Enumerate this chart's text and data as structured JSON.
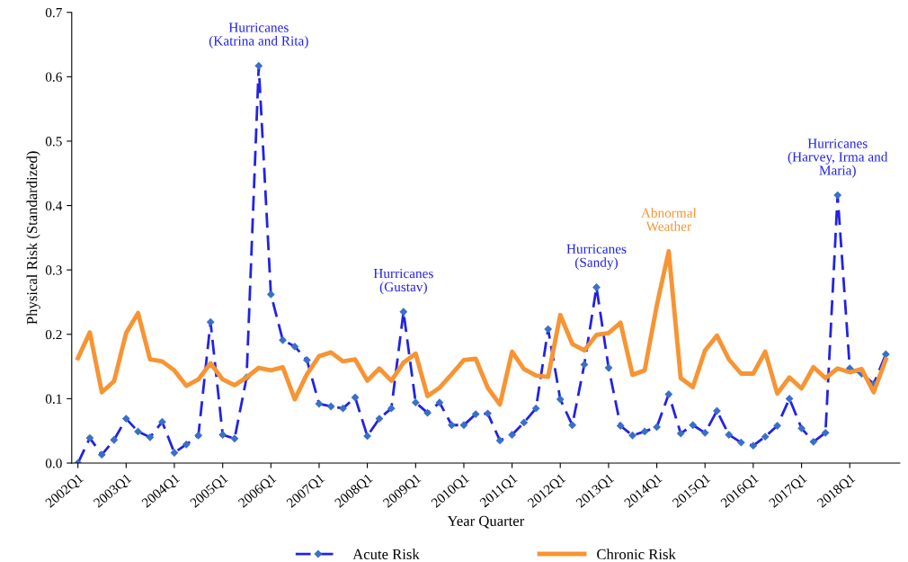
{
  "chart_data": {
    "type": "line",
    "xlabel": "Year Quarter",
    "ylabel": "Physical Risk (Standardized)",
    "x": [
      "2002-01",
      "2002-04",
      "2002-07",
      "2002-10",
      "2003-01",
      "2003-04",
      "2003-07",
      "2003-10",
      "2004-01",
      "2004-04",
      "2004-07",
      "2004-10",
      "2005-01",
      "2005-04",
      "2005-07",
      "2005-10",
      "2006-01",
      "2006-04",
      "2006-07",
      "2006-10",
      "2007-01",
      "2007-04",
      "2007-07",
      "2007-10",
      "2008-01",
      "2008-04",
      "2008-07",
      "2008-10",
      "2009-01",
      "2009-04",
      "2009-07",
      "2009-10",
      "2010-01",
      "2010-04",
      "2010-07",
      "2010-10",
      "2011-01",
      "2011-04",
      "2011-07",
      "2011-10",
      "2012-01",
      "2012-04",
      "2012-07",
      "2012-10",
      "2013-01",
      "2013-04",
      "2013-07",
      "2013-10",
      "2014-01",
      "2014-04",
      "2014-07",
      "2014-10",
      "2015-01",
      "2015-04",
      "2015-07",
      "2015-10",
      "2016-01",
      "2016-04",
      "2016-07",
      "2016-10",
      "2017-01",
      "2017-04",
      "2017-07",
      "2017-10",
      "2018-01",
      "2018-04",
      "2018-07",
      "2018-10"
    ],
    "series": [
      {
        "name": "Acute Risk",
        "color": "#2222e6",
        "line_style": "dashed",
        "marker": "diamond",
        "values": [
          0.0,
          0.039,
          0.013,
          0.036,
          0.069,
          0.049,
          0.04,
          0.064,
          0.016,
          0.029,
          0.043,
          0.219,
          0.044,
          0.038,
          0.133,
          0.617,
          0.262,
          0.191,
          0.181,
          0.16,
          0.092,
          0.088,
          0.085,
          0.102,
          0.042,
          0.069,
          0.085,
          0.235,
          0.094,
          0.078,
          0.094,
          0.059,
          0.059,
          0.076,
          0.077,
          0.035,
          0.044,
          0.063,
          0.085,
          0.208,
          0.099,
          0.059,
          0.153,
          0.273,
          0.148,
          0.058,
          0.043,
          0.049,
          0.056,
          0.107,
          0.046,
          0.059,
          0.047,
          0.081,
          0.044,
          0.032,
          0.027,
          0.041,
          0.058,
          0.1,
          0.054,
          0.033,
          0.047,
          0.416,
          0.147,
          0.139,
          0.123,
          0.169
        ]
      },
      {
        "name": "Chronic Risk",
        "color": "#f79433",
        "line_style": "solid",
        "marker": "none",
        "values": [
          0.163,
          0.203,
          0.11,
          0.127,
          0.202,
          0.233,
          0.161,
          0.158,
          0.144,
          0.12,
          0.13,
          0.155,
          0.13,
          0.121,
          0.133,
          0.148,
          0.144,
          0.149,
          0.099,
          0.138,
          0.166,
          0.172,
          0.158,
          0.161,
          0.128,
          0.147,
          0.128,
          0.156,
          0.17,
          0.104,
          0.117,
          0.138,
          0.16,
          0.162,
          0.117,
          0.091,
          0.173,
          0.146,
          0.136,
          0.134,
          0.23,
          0.185,
          0.175,
          0.199,
          0.202,
          0.218,
          0.137,
          0.144,
          0.245,
          0.329,
          0.132,
          0.118,
          0.175,
          0.198,
          0.161,
          0.139,
          0.139,
          0.173,
          0.108,
          0.133,
          0.116,
          0.149,
          0.132,
          0.147,
          0.141,
          0.146,
          0.11,
          0.161
        ]
      }
    ],
    "xlim": [
      "2001-11-15",
      "2019-01-15"
    ],
    "xticks": [
      {
        "value": "2002-01",
        "label": "2002Q1"
      },
      {
        "value": "2003-01",
        "label": "2003Q1"
      },
      {
        "value": "2004-01",
        "label": "2004Q1"
      },
      {
        "value": "2005-01",
        "label": "2005Q1"
      },
      {
        "value": "2006-01",
        "label": "2006Q1"
      },
      {
        "value": "2007-01",
        "label": "2007Q1"
      },
      {
        "value": "2008-01",
        "label": "2008Q1"
      },
      {
        "value": "2009-01",
        "label": "2009Q1"
      },
      {
        "value": "2010-01",
        "label": "2010Q1"
      },
      {
        "value": "2011-01",
        "label": "2011Q1"
      },
      {
        "value": "2012-01",
        "label": "2012Q1"
      },
      {
        "value": "2013-01",
        "label": "2013Q1"
      },
      {
        "value": "2014-01",
        "label": "2014Q1"
      },
      {
        "value": "2015-01",
        "label": "2015Q1"
      },
      {
        "value": "2016-01",
        "label": "2016Q1"
      },
      {
        "value": "2017-01",
        "label": "2017Q1"
      },
      {
        "value": "2018-01",
        "label": "2018Q1"
      }
    ],
    "ylim": [
      0,
      0.7
    ],
    "yticks": [
      {
        "value": 0,
        "label": "0.0"
      },
      0.1,
      0.2,
      0.3,
      0.4,
      0.5,
      0.6,
      {
        "value": 0.7,
        "label": "0.7"
      }
    ],
    "grid": false,
    "legend": "bottom",
    "annotations": [
      {
        "text": "Hurricanes\n(Katrina and Rita)",
        "x": "2005-10",
        "y": 0.617
      },
      {
        "text": "Hurricanes\n(Gustav)",
        "x": "2008-10",
        "y": 0.235
      },
      {
        "text": "Hurricanes\n(Sandy)",
        "x": "2012-10",
        "y": 0.273
      },
      {
        "text": "Abnormal\nWeather",
        "x": "2014-04",
        "y": 0.329
      },
      {
        "text": "Hurricanes\n(Harvey, Irma and\nMaria)",
        "x": "2017-10",
        "y": 0.416
      }
    ]
  }
}
